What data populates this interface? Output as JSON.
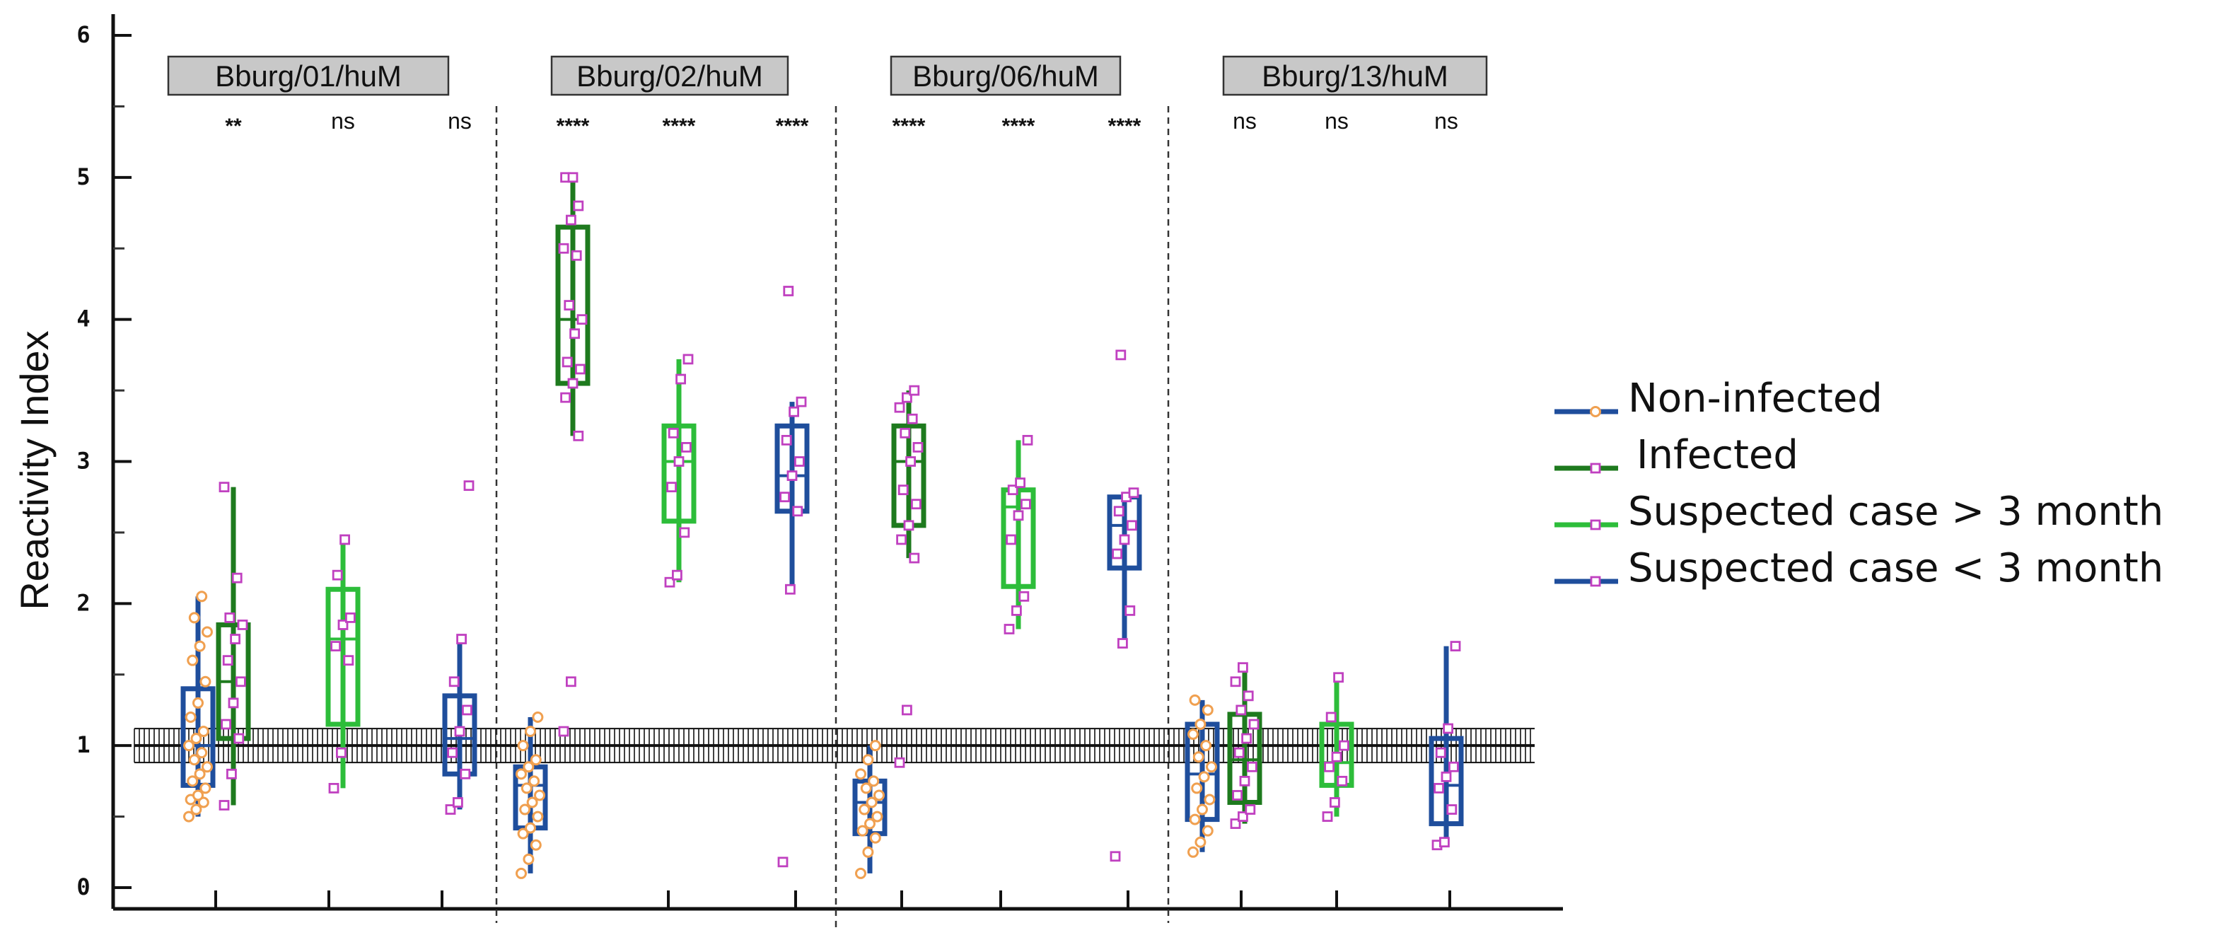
{
  "chart_data": {
    "type": "box",
    "ylabel": "Reactivity Index",
    "xlabel": "",
    "ylim": [
      0,
      6
    ],
    "yticks": [
      "0",
      "1",
      "2",
      "3",
      "4",
      "5",
      "6"
    ],
    "cutoff_line": 1,
    "legend": [
      {
        "name": "Non-infected",
        "box_color": "#1f4e9c",
        "marker": "circle",
        "marker_color": "#f0a050"
      },
      {
        "name": "Infected",
        "box_color": "#1e7a1e",
        "marker": "square",
        "marker_color": "#c040c0"
      },
      {
        "name": "Suspected case > 3 month",
        "box_color": "#2dbd3a",
        "marker": "square",
        "marker_color": "#c040c0"
      },
      {
        "name": "Suspected case < 3 month",
        "box_color": "#1f4e9c",
        "marker": "square",
        "marker_color": "#c040c0"
      }
    ],
    "panels": [
      {
        "label": "Bburg/01/huM",
        "groups": [
          {
            "series": "Non-infected",
            "box": [
              0.72,
              1.0,
              1.4
            ],
            "whisker": [
              0.5,
              2.05
            ],
            "points": [
              0.5,
              0.55,
              0.6,
              0.62,
              0.65,
              0.7,
              0.75,
              0.8,
              0.85,
              0.9,
              0.95,
              1.0,
              1.05,
              1.1,
              1.2,
              1.3,
              1.45,
              1.6,
              1.7,
              1.8,
              1.9,
              2.05
            ]
          },
          {
            "series": "Infected",
            "box": [
              1.05,
              1.45,
              1.85
            ],
            "whisker": [
              0.58,
              2.82
            ],
            "sig": "**",
            "points": [
              0.58,
              0.8,
              1.05,
              1.15,
              1.3,
              1.45,
              1.6,
              1.75,
              1.85,
              1.9,
              2.18,
              2.82
            ]
          },
          {
            "series": "Suspected case > 3 month",
            "box": [
              1.15,
              1.75,
              2.1
            ],
            "whisker": [
              0.7,
              2.45
            ],
            "sig": "ns",
            "points": [
              0.7,
              0.95,
              1.6,
              1.7,
              1.85,
              1.9,
              2.2,
              2.45
            ]
          },
          {
            "series": "Suspected case < 3 month",
            "box": [
              0.8,
              1.05,
              1.35
            ],
            "whisker": [
              0.55,
              1.75
            ],
            "sig": "ns",
            "points": [
              0.55,
              0.6,
              0.8,
              0.95,
              1.1,
              1.25,
              1.45,
              1.75,
              2.83
            ]
          }
        ]
      },
      {
        "label": "Bburg/02/huM",
        "groups": [
          {
            "series": "Non-infected",
            "box": [
              0.42,
              0.72,
              0.85
            ],
            "whisker": [
              0.1,
              1.2
            ],
            "points": [
              0.1,
              0.2,
              0.3,
              0.38,
              0.42,
              0.5,
              0.55,
              0.6,
              0.65,
              0.7,
              0.75,
              0.8,
              0.85,
              0.9,
              1.0,
              1.1,
              1.2
            ]
          },
          {
            "series": "Infected",
            "box": [
              3.55,
              4.0,
              4.65
            ],
            "whisker": [
              3.18,
              5.0
            ],
            "sig": "****",
            "points": [
              1.1,
              1.45,
              3.18,
              3.45,
              3.55,
              3.65,
              3.7,
              3.9,
              4.0,
              4.1,
              4.45,
              4.5,
              4.7,
              4.8,
              5.0,
              5.0
            ]
          },
          {
            "series": "Suspected case > 3 month",
            "box": [
              2.58,
              3.0,
              3.25
            ],
            "whisker": [
              2.15,
              3.72
            ],
            "sig": "****",
            "points": [
              2.15,
              2.2,
              2.5,
              2.82,
              3.0,
              3.1,
              3.2,
              3.58,
              3.72
            ]
          },
          {
            "series": "Suspected case < 3 month",
            "box": [
              2.65,
              2.9,
              3.25
            ],
            "whisker": [
              2.1,
              3.42
            ],
            "sig": "****",
            "points": [
              0.18,
              2.1,
              2.65,
              2.75,
              2.9,
              3.0,
              3.15,
              3.35,
              3.42,
              4.2
            ]
          }
        ]
      },
      {
        "label": "Bburg/06/huM",
        "groups": [
          {
            "series": "Non-infected",
            "box": [
              0.38,
              0.6,
              0.75
            ],
            "whisker": [
              0.1,
              1.0
            ],
            "points": [
              0.1,
              0.25,
              0.35,
              0.4,
              0.45,
              0.5,
              0.55,
              0.6,
              0.65,
              0.7,
              0.75,
              0.8,
              0.9,
              1.0
            ]
          },
          {
            "series": "Infected",
            "box": [
              2.55,
              3.0,
              3.25
            ],
            "whisker": [
              2.32,
              3.5
            ],
            "sig": "****",
            "points": [
              0.88,
              1.25,
              2.32,
              2.45,
              2.55,
              2.7,
              2.8,
              3.0,
              3.1,
              3.2,
              3.3,
              3.38,
              3.45,
              3.5
            ]
          },
          {
            "series": "Suspected case > 3 month",
            "box": [
              2.12,
              2.68,
              2.8
            ],
            "whisker": [
              1.82,
              3.15
            ],
            "sig": "****",
            "points": [
              1.82,
              1.95,
              2.05,
              2.45,
              2.62,
              2.7,
              2.8,
              2.85,
              3.15
            ]
          },
          {
            "series": "Suspected case < 3 month",
            "box": [
              2.25,
              2.55,
              2.75
            ],
            "whisker": [
              1.72,
              2.78
            ],
            "sig": "****",
            "points": [
              0.22,
              1.72,
              1.95,
              2.35,
              2.45,
              2.55,
              2.65,
              2.75,
              2.78,
              3.75
            ]
          }
        ]
      },
      {
        "label": "Bburg/13/huM",
        "groups": [
          {
            "series": "Non-infected",
            "box": [
              0.48,
              0.8,
              1.15
            ],
            "whisker": [
              0.25,
              1.32
            ],
            "points": [
              0.25,
              0.32,
              0.4,
              0.48,
              0.55,
              0.62,
              0.7,
              0.78,
              0.85,
              0.92,
              1.0,
              1.08,
              1.15,
              1.25,
              1.32
            ]
          },
          {
            "series": "Infected",
            "box": [
              0.6,
              0.9,
              1.22
            ],
            "whisker": [
              0.45,
              1.55
            ],
            "sig": "ns",
            "points": [
              0.45,
              0.5,
              0.55,
              0.65,
              0.75,
              0.85,
              0.95,
              1.05,
              1.15,
              1.25,
              1.35,
              1.45,
              1.55
            ]
          },
          {
            "series": "Suspected case > 3 month",
            "box": [
              0.72,
              0.88,
              1.15
            ],
            "whisker": [
              0.5,
              1.48
            ],
            "sig": "ns",
            "points": [
              0.5,
              0.6,
              0.75,
              0.85,
              0.92,
              1.0,
              1.2,
              1.48
            ]
          },
          {
            "series": "Suspected case < 3 month",
            "box": [
              0.45,
              0.72,
              1.05
            ],
            "whisker": [
              0.3,
              1.7
            ],
            "sig": "ns",
            "points": [
              0.3,
              0.32,
              0.55,
              0.7,
              0.78,
              0.85,
              0.95,
              1.12,
              1.7
            ]
          }
        ]
      }
    ]
  }
}
